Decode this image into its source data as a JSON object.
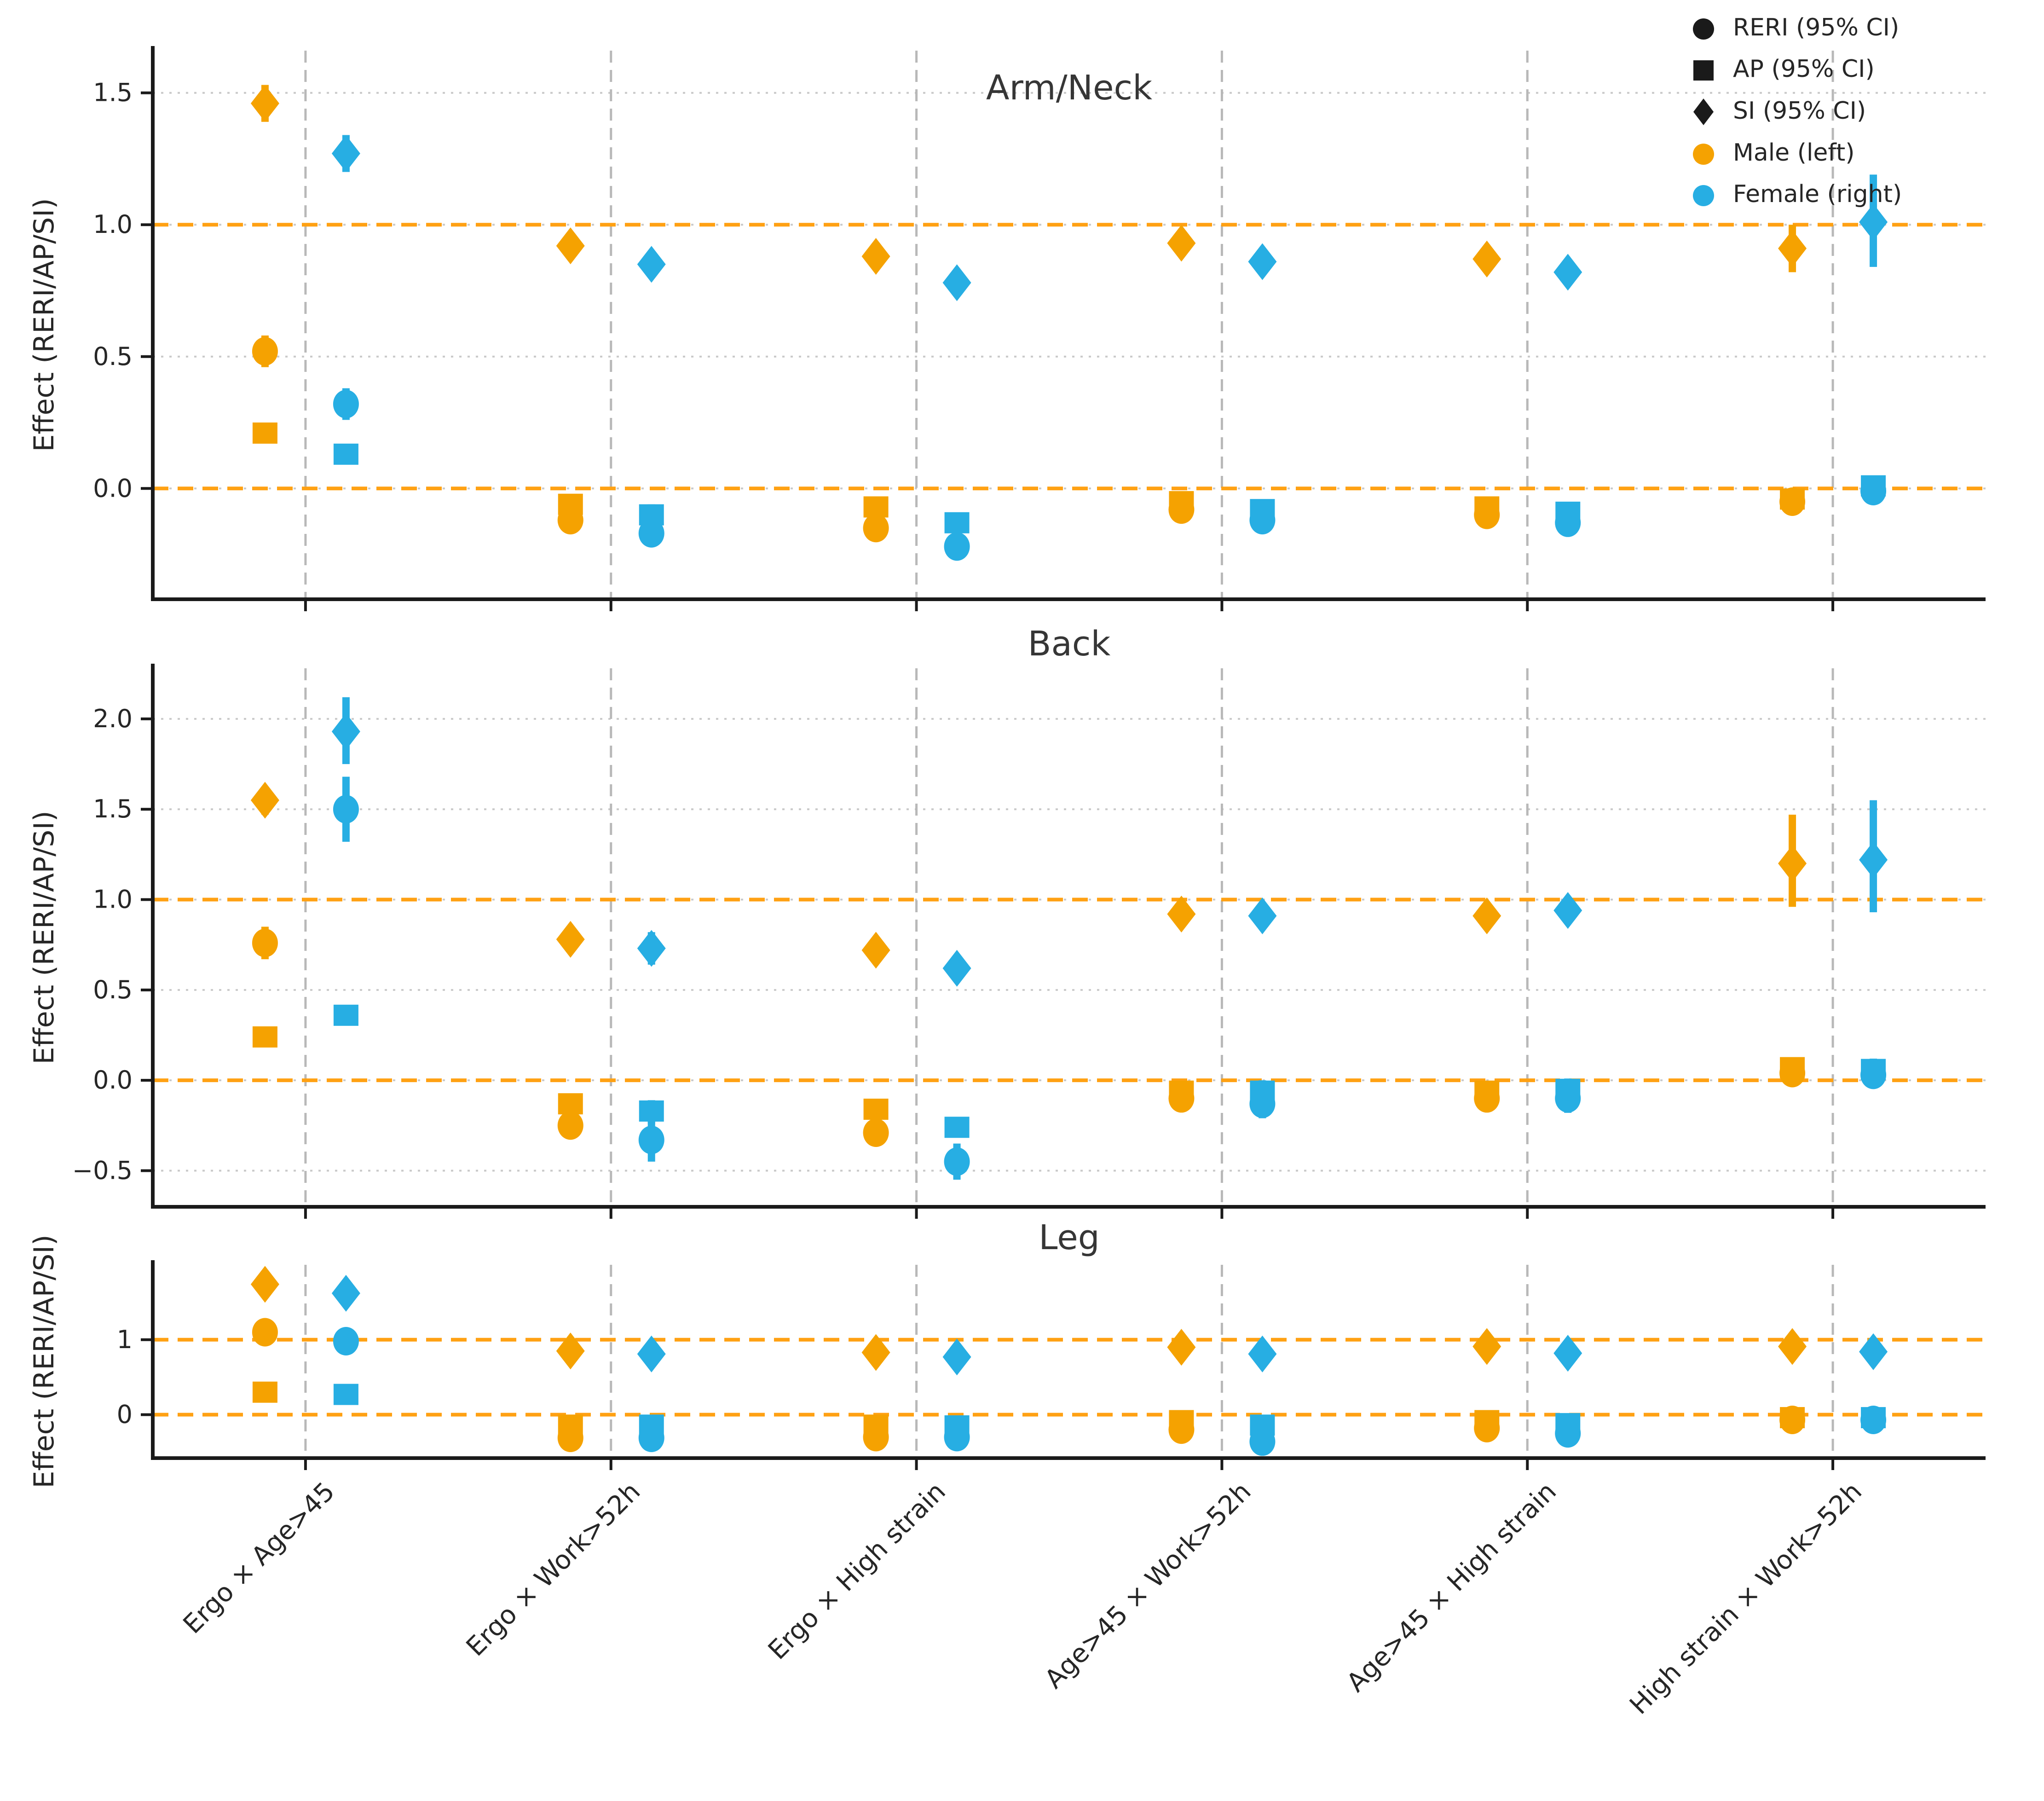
{
  "figure_title": "",
  "ylabel": "Effect (RERI/AP/SI)",
  "categories": [
    "Ergo × Age>45",
    "Ergo × Work>52h",
    "Ergo × High strain",
    "Age>45 × Work>52h",
    "Age>45 × High strain",
    "High strain × Work>52h"
  ],
  "legend": {
    "items": [
      {
        "marker": "circle",
        "color": "#1a1a1a",
        "label": "RERI (95% CI)"
      },
      {
        "marker": "square",
        "color": "#1a1a1a",
        "label": "AP (95% CI)"
      },
      {
        "marker": "diamond",
        "color": "#1a1a1a",
        "label": "SI (95% CI)"
      },
      {
        "marker": "circle",
        "color": "#F5A201",
        "label": "Male (left)"
      },
      {
        "marker": "circle",
        "color": "#27AEE3",
        "label": "Female (right)"
      }
    ]
  },
  "colors": {
    "male": "#F5A201",
    "female": "#27AEE3",
    "ref_line": "#FFA113",
    "separator": "#b8b8b8",
    "gridline": "#c9c9c9",
    "axis": "#1a1a1a",
    "title": "#363636"
  },
  "chart_data": [
    {
      "type": "scatter",
      "title": "Arm/Neck",
      "ylabel": "Effect (RERI/AP/SI)",
      "ylim": [
        -0.42,
        1.66
      ],
      "yticks": [
        0.0,
        0.5,
        1.0,
        1.5
      ],
      "ytick_labels": [
        "0.0",
        "0.5",
        "1.0",
        "1.5"
      ],
      "ref_lines": [
        0,
        1
      ],
      "grid": true,
      "legend_position": "top-right",
      "series": [
        {
          "name": "Male",
          "color_key": "male",
          "RERI": [
            [
              0.52,
              0.46,
              0.58
            ],
            [
              -0.12,
              -0.17,
              -0.08
            ],
            [
              -0.15,
              -0.19,
              -0.11
            ],
            [
              -0.08,
              -0.13,
              -0.04
            ],
            [
              -0.1,
              -0.14,
              -0.06
            ],
            [
              -0.05,
              -0.09,
              -0.02
            ]
          ],
          "AP": [
            [
              0.21,
              0.18,
              0.24
            ],
            [
              -0.06,
              -0.1,
              -0.03
            ],
            [
              -0.07,
              -0.1,
              -0.04
            ],
            [
              -0.05,
              -0.08,
              -0.01
            ],
            [
              -0.07,
              -0.1,
              -0.03
            ],
            [
              -0.04,
              -0.07,
              -0.01
            ]
          ],
          "SI": [
            [
              1.46,
              1.39,
              1.53
            ],
            [
              0.92,
              0.87,
              0.96
            ],
            [
              0.88,
              0.84,
              0.92
            ],
            [
              0.93,
              0.89,
              0.98
            ],
            [
              0.87,
              0.82,
              0.91
            ],
            [
              0.91,
              0.82,
              1.0
            ]
          ]
        },
        {
          "name": "Female",
          "color_key": "female",
          "RERI": [
            [
              0.32,
              0.26,
              0.38
            ],
            [
              -0.17,
              -0.22,
              -0.12
            ],
            [
              -0.22,
              -0.26,
              -0.18
            ],
            [
              -0.12,
              -0.16,
              -0.08
            ],
            [
              -0.13,
              -0.17,
              -0.09
            ],
            [
              -0.01,
              -0.05,
              0.03
            ]
          ],
          "AP": [
            [
              0.13,
              0.1,
              0.16
            ],
            [
              -0.1,
              -0.13,
              -0.06
            ],
            [
              -0.13,
              -0.16,
              -0.1
            ],
            [
              -0.08,
              -0.11,
              -0.05
            ],
            [
              -0.09,
              -0.12,
              -0.06
            ],
            [
              0.01,
              -0.02,
              0.04
            ]
          ],
          "SI": [
            [
              1.27,
              1.2,
              1.34
            ],
            [
              0.85,
              0.81,
              0.89
            ],
            [
              0.78,
              0.74,
              0.82
            ],
            [
              0.86,
              0.82,
              0.9
            ],
            [
              0.82,
              0.78,
              0.86
            ],
            [
              1.01,
              0.84,
              1.19
            ]
          ]
        }
      ]
    },
    {
      "type": "scatter",
      "title": "Back",
      "ylabel": "Effect (RERI/AP/SI)",
      "ylim": [
        -0.7,
        2.28
      ],
      "yticks": [
        -0.5,
        0.0,
        0.5,
        1.0,
        1.5,
        2.0
      ],
      "ytick_labels": [
        "−0.5",
        "0.0",
        "0.5",
        "1.0",
        "1.5",
        "2.0"
      ],
      "ref_lines": [
        0,
        1
      ],
      "grid": true,
      "series": [
        {
          "name": "Male",
          "color_key": "male",
          "RERI": [
            [
              0.76,
              0.67,
              0.85
            ],
            [
              -0.25,
              -0.31,
              -0.19
            ],
            [
              -0.29,
              -0.35,
              -0.23
            ],
            [
              -0.1,
              -0.17,
              -0.04
            ],
            [
              -0.1,
              -0.17,
              -0.04
            ],
            [
              0.04,
              -0.02,
              0.1
            ]
          ],
          "AP": [
            [
              0.24,
              0.21,
              0.28
            ],
            [
              -0.13,
              -0.17,
              -0.09
            ],
            [
              -0.16,
              -0.2,
              -0.12
            ],
            [
              -0.06,
              -0.11,
              -0.01
            ],
            [
              -0.06,
              -0.11,
              -0.01
            ],
            [
              0.07,
              0.02,
              0.12
            ]
          ],
          "SI": [
            [
              1.55,
              1.47,
              1.62
            ],
            [
              0.78,
              0.73,
              0.83
            ],
            [
              0.72,
              0.68,
              0.77
            ],
            [
              0.92,
              0.88,
              0.97
            ],
            [
              0.91,
              0.86,
              0.95
            ],
            [
              1.2,
              0.96,
              1.47
            ]
          ]
        },
        {
          "name": "Female",
          "color_key": "female",
          "RERI": [
            [
              1.5,
              1.32,
              1.68
            ],
            [
              -0.33,
              -0.45,
              -0.21
            ],
            [
              -0.45,
              -0.55,
              -0.35
            ],
            [
              -0.13,
              -0.21,
              -0.05
            ],
            [
              -0.1,
              -0.18,
              -0.02
            ],
            [
              0.03,
              -0.04,
              0.1
            ]
          ],
          "AP": [
            [
              0.36,
              0.32,
              0.4
            ],
            [
              -0.17,
              -0.24,
              -0.11
            ],
            [
              -0.26,
              -0.31,
              -0.21
            ],
            [
              -0.06,
              -0.12,
              0.0
            ],
            [
              -0.05,
              -0.11,
              0.01
            ],
            [
              0.06,
              0.0,
              0.12
            ]
          ],
          "SI": [
            [
              1.93,
              1.75,
              2.12
            ],
            [
              0.73,
              0.64,
              0.82
            ],
            [
              0.62,
              0.55,
              0.69
            ],
            [
              0.91,
              0.86,
              0.96
            ],
            [
              0.94,
              0.89,
              0.99
            ],
            [
              1.22,
              0.93,
              1.55
            ]
          ]
        }
      ]
    },
    {
      "type": "scatter",
      "title": "Leg",
      "ylabel": "Effect (RERI/AP/SI)",
      "ylim": [
        -0.58,
        2.0
      ],
      "yticks": [
        0,
        1
      ],
      "ytick_labels": [
        "0",
        "1"
      ],
      "ref_lines": [
        0,
        1
      ],
      "grid": false,
      "series": [
        {
          "name": "Male",
          "color_key": "male",
          "RERI": [
            [
              1.1,
              1.04,
              1.16
            ],
            [
              -0.31,
              -0.37,
              -0.26
            ],
            [
              -0.3,
              -0.36,
              -0.25
            ],
            [
              -0.2,
              -0.27,
              -0.13
            ],
            [
              -0.18,
              -0.25,
              -0.12
            ],
            [
              -0.07,
              -0.12,
              -0.02
            ]
          ],
          "AP": [
            [
              0.3,
              0.26,
              0.34
            ],
            [
              -0.14,
              -0.19,
              -0.1
            ],
            [
              -0.14,
              -0.18,
              -0.1
            ],
            [
              -0.08,
              -0.13,
              -0.03
            ],
            [
              -0.08,
              -0.12,
              -0.04
            ],
            [
              -0.04,
              -0.08,
              0.0
            ]
          ],
          "SI": [
            [
              1.74,
              1.68,
              1.8
            ],
            [
              0.85,
              0.81,
              0.89
            ],
            [
              0.83,
              0.79,
              0.87
            ],
            [
              0.9,
              0.86,
              0.94
            ],
            [
              0.91,
              0.87,
              0.95
            ],
            [
              0.91,
              0.87,
              0.95
            ]
          ]
        },
        {
          "name": "Female",
          "color_key": "female",
          "RERI": [
            [
              0.98,
              0.91,
              1.05
            ],
            [
              -0.31,
              -0.37,
              -0.25
            ],
            [
              -0.3,
              -0.36,
              -0.24
            ],
            [
              -0.36,
              -0.42,
              -0.3
            ],
            [
              -0.25,
              -0.32,
              -0.18
            ],
            [
              -0.07,
              -0.13,
              -0.01
            ]
          ],
          "AP": [
            [
              0.27,
              0.23,
              0.31
            ],
            [
              -0.14,
              -0.19,
              -0.09
            ],
            [
              -0.15,
              -0.19,
              -0.1
            ],
            [
              -0.14,
              -0.19,
              -0.09
            ],
            [
              -0.12,
              -0.17,
              -0.07
            ],
            [
              -0.04,
              -0.09,
              0.0
            ]
          ],
          "SI": [
            [
              1.62,
              1.55,
              1.69
            ],
            [
              0.81,
              0.76,
              0.86
            ],
            [
              0.77,
              0.72,
              0.82
            ],
            [
              0.81,
              0.76,
              0.86
            ],
            [
              0.82,
              0.77,
              0.87
            ],
            [
              0.84,
              0.71,
              0.98
            ]
          ]
        }
      ]
    }
  ]
}
